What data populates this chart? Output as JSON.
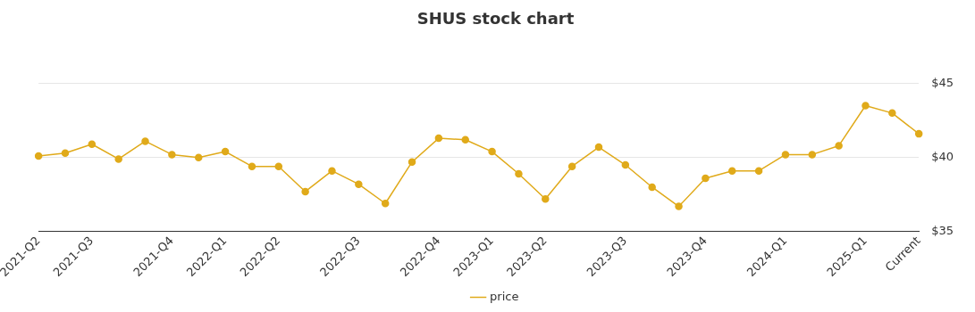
{
  "chart_data": {
    "type": "line",
    "title": "SHUS stock chart",
    "categories": [
      "2021-Q2",
      null,
      "2021-Q3",
      null,
      null,
      "2021-Q4",
      null,
      "2022-Q1",
      null,
      "2022-Q2",
      null,
      null,
      "2022-Q3",
      null,
      null,
      "2022-Q4",
      null,
      "2023-Q1",
      null,
      "2023-Q2",
      null,
      null,
      "2023-Q3",
      null,
      null,
      "2023-Q4",
      null,
      null,
      "2024-Q1",
      null,
      null,
      "2025-Q1",
      null,
      "Current"
    ],
    "series": [
      {
        "name": "price",
        "color": "#e0aa1a",
        "values": [
          40.1,
          40.3,
          40.9,
          39.9,
          41.1,
          40.2,
          40.0,
          40.4,
          39.4,
          39.4,
          37.7,
          39.1,
          38.2,
          36.9,
          39.7,
          41.3,
          41.2,
          40.4,
          38.9,
          37.2,
          39.4,
          40.7,
          39.5,
          38.0,
          36.7,
          38.6,
          39.1,
          39.1,
          40.2,
          40.2,
          40.8,
          43.5,
          43.0,
          41.6
        ]
      }
    ],
    "ylim": [
      35,
      45
    ],
    "yticks": [
      {
        "value": 35,
        "label": "$35"
      },
      {
        "value": 40,
        "label": "$40"
      },
      {
        "value": 45,
        "label": "$45"
      }
    ],
    "grid": "y",
    "legend": "bottom",
    "marker": "circle",
    "line_style": "solid"
  }
}
